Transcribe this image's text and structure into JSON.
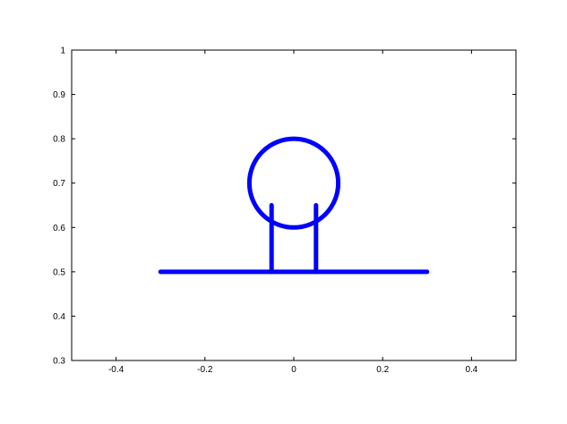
{
  "chart_data": {
    "type": "line",
    "title": "",
    "xlabel": "",
    "ylabel": "",
    "xlim": [
      -0.5,
      0.5
    ],
    "ylim": [
      0.3,
      1.0
    ],
    "x_ticks": [
      -0.4,
      -0.2,
      0,
      0.2,
      0.4
    ],
    "x_tick_labels": [
      "-0.4",
      "-0.2",
      "0",
      "0.2",
      "0.4"
    ],
    "y_ticks": [
      0.3,
      0.4,
      0.5,
      0.6,
      0.7,
      0.8,
      0.9,
      1.0
    ],
    "y_tick_labels": [
      "0.3",
      "0.4",
      "0.5",
      "0.6",
      "0.7",
      "0.8",
      "0.9",
      "1"
    ],
    "grid": false,
    "line_color": "#0000ff",
    "series": [
      {
        "kind": "segment",
        "x": [
          -0.3,
          0.3
        ],
        "y": [
          0.5,
          0.5
        ]
      },
      {
        "kind": "segment",
        "x": [
          -0.05,
          -0.05
        ],
        "y": [
          0.5,
          0.65
        ]
      },
      {
        "kind": "segment",
        "x": [
          0.05,
          0.05
        ],
        "y": [
          0.5,
          0.65
        ]
      },
      {
        "kind": "circle",
        "center": [
          0,
          0.7
        ],
        "radius": 0.1
      }
    ]
  }
}
